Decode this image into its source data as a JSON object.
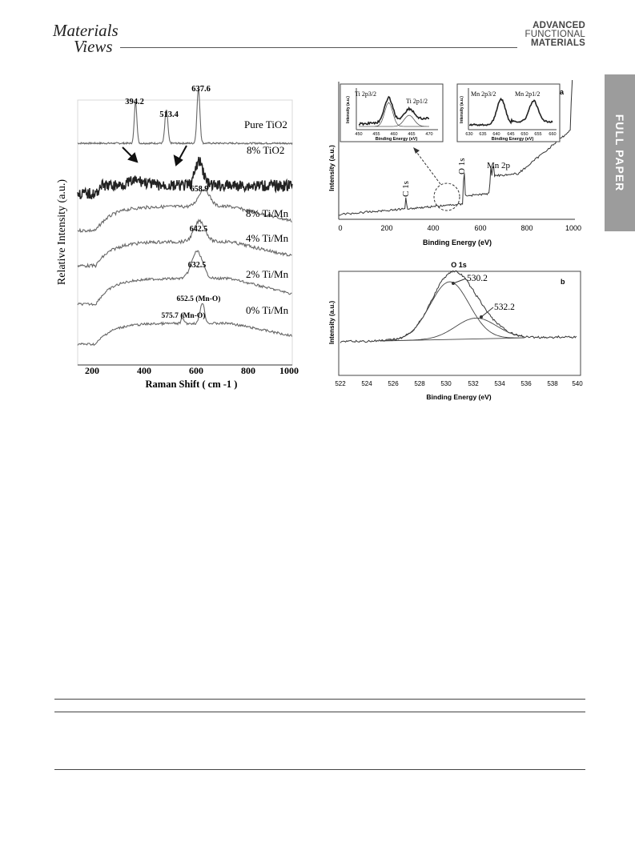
{
  "header": {
    "journal_logo_left": [
      "Materials",
      "Views"
    ],
    "journal_logo_right": [
      "ADVANCED",
      "FUNCTIONAL",
      "MATERIALS"
    ],
    "section_tab": "FULL PAPER"
  },
  "chart_data": [
    {
      "type": "line",
      "title": "",
      "xlabel": "Raman Shift ( cm -1 )",
      "ylabel": "Relative Intensity (a.u.)",
      "xlim": [
        170,
        1000
      ],
      "xticks": [
        "200",
        "400",
        "600",
        "800",
        "1000"
      ],
      "grid": false,
      "series": [
        {
          "name": "Pure TiO2",
          "peaks": [
            394.2,
            513.4,
            637.6
          ]
        },
        {
          "name": "8% TiO2"
        },
        {
          "name": "8% Ti/Mn",
          "peaks": [
            658.9
          ]
        },
        {
          "name": "4% Ti/Mn",
          "peaks": [
            642.5
          ]
        },
        {
          "name": "2% Ti/Mn",
          "peaks": [
            632.5
          ]
        },
        {
          "name": "0% Ti/Mn",
          "peaks": [
            652.5,
            575.7
          ]
        }
      ],
      "annotations": [
        "394.2",
        "513.4",
        "637.6",
        "658.9",
        "642.5",
        "632.5",
        "652.5 (Mn-O)",
        "575.7 (Mn-O)"
      ]
    },
    {
      "type": "line",
      "panel": "a",
      "xlabel": "Binding Energy (eV)",
      "ylabel": "Intensity (a.u.)",
      "xlim": [
        0,
        1000
      ],
      "xticks": [
        "0",
        "200",
        "400",
        "600",
        "800",
        "1000"
      ],
      "annotations": [
        "C 1s",
        "O 1s",
        "Mn 2p"
      ],
      "insets": [
        {
          "xlabel": "Binding Energy (eV)",
          "ylabel": "Intensity (a.u.)",
          "xticks": [
            "450",
            "455",
            "460",
            "465",
            "470"
          ],
          "labels": [
            "Ti 2p3/2",
            "Ti 2p1/2"
          ]
        },
        {
          "xlabel": "Binding Energy (eV)",
          "ylabel": "Intensity (a.u.)",
          "xticks": [
            "630",
            "635",
            "640",
            "645",
            "650",
            "655",
            "660"
          ],
          "labels": [
            "Mn 2p3/2",
            "Mn 2p1/2"
          ]
        }
      ]
    },
    {
      "type": "line",
      "panel": "b",
      "title": "O 1s",
      "xlabel": "Binding Energy (eV)",
      "ylabel": "Intensity (a.u.)",
      "xlim": [
        522,
        540
      ],
      "xticks": [
        "522",
        "524",
        "526",
        "528",
        "530",
        "532",
        "534",
        "536",
        "538",
        "540"
      ],
      "peaks": [
        530.2,
        532.2
      ],
      "annotations": [
        "530.2",
        "532.2"
      ]
    }
  ]
}
